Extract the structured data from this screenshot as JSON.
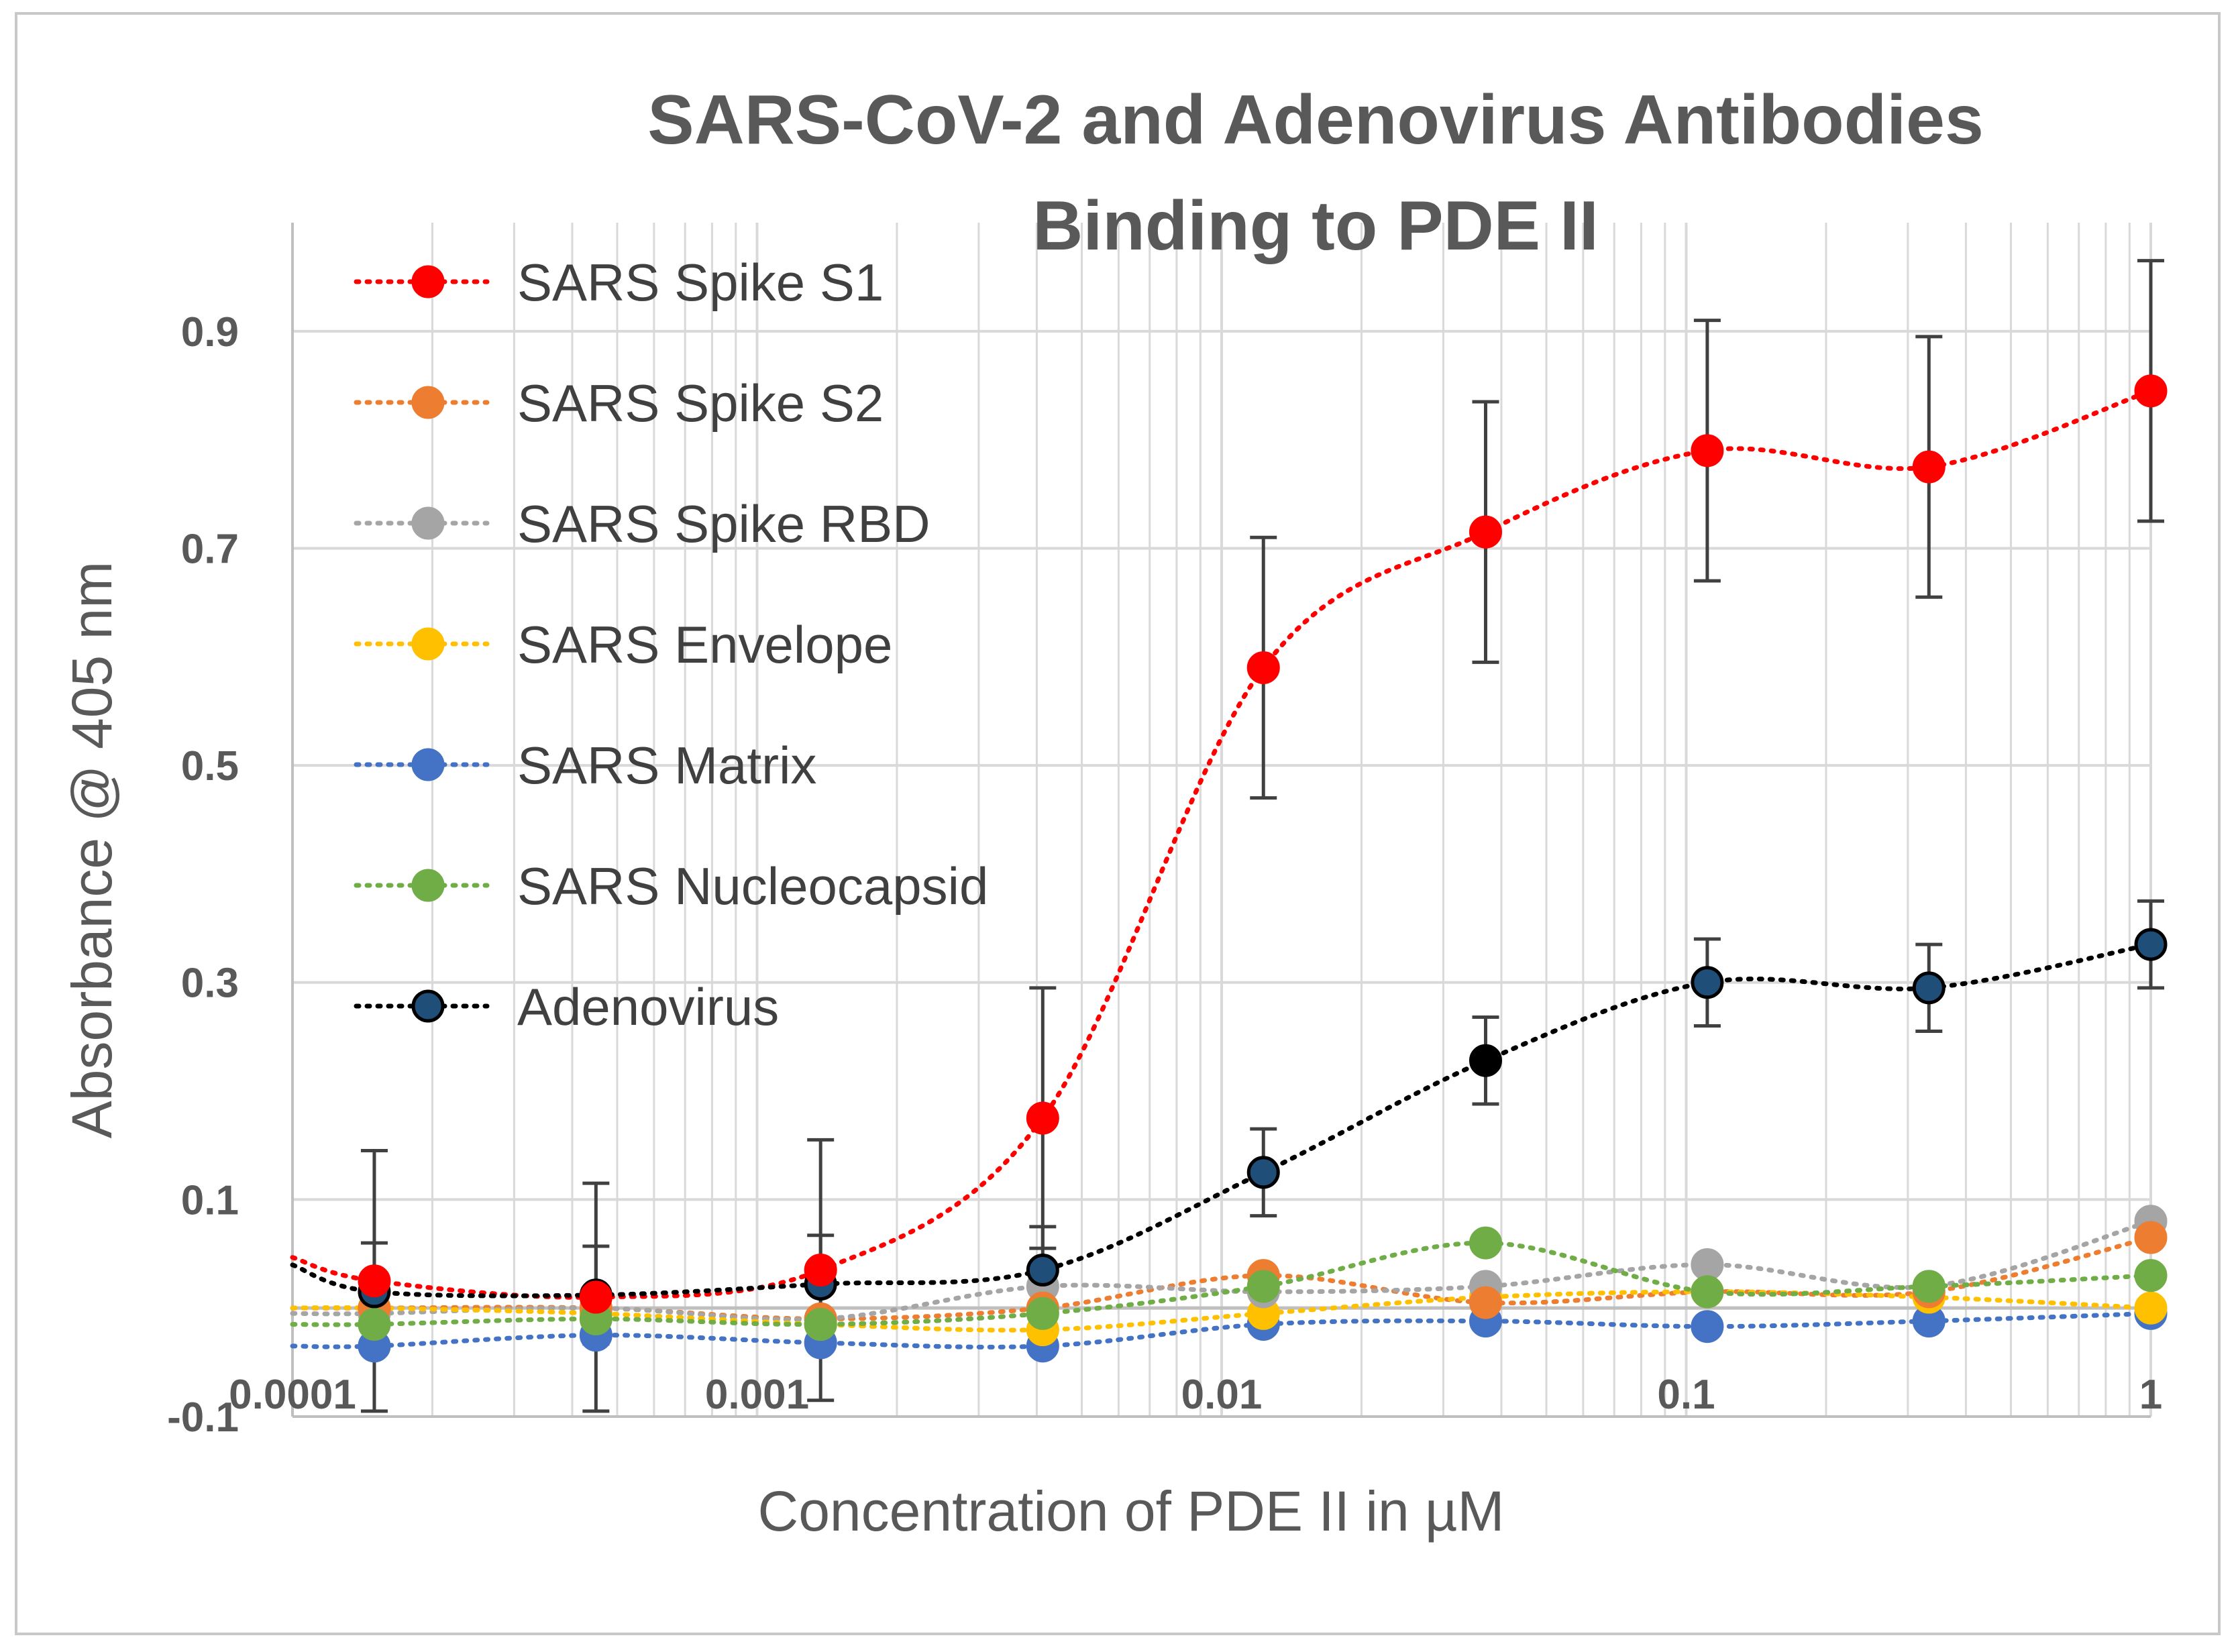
{
  "chart_data": {
    "type": "line",
    "title_lines": [
      "SARS-CoV-2 and Adenovirus Antibodies",
      "Binding to PDE II"
    ],
    "xlabel": "Concentration of PDE II in µM",
    "ylabel": "Absorbance @ 405 nm",
    "x_scale": "log",
    "xlim": [
      0.0001,
      1
    ],
    "ylim": [
      -0.1,
      1.0
    ],
    "x_ticks": [
      0.0001,
      0.001,
      0.01,
      0.1,
      1
    ],
    "x_tick_labels": [
      "0.0001",
      "0.001",
      "0.01",
      "0.1",
      "1"
    ],
    "y_ticks": [
      -0.1,
      0.1,
      0.3,
      0.5,
      0.7,
      0.9
    ],
    "y_tick_labels": [
      "-0.1",
      "0.1",
      "0.3",
      "0.5",
      "0.7",
      "0.9"
    ],
    "x": [
      0.00015,
      0.00045,
      0.00137,
      0.00412,
      0.0123,
      0.037,
      0.111,
      0.333,
      1.0
    ],
    "legend_position": "top-left",
    "series": [
      {
        "name": "SARS Spike S1",
        "color": "#ff0000",
        "marker_edge": "#ff0000",
        "values": [
          0.025,
          0.01,
          0.035,
          0.175,
          0.59,
          0.715,
          0.79,
          0.775,
          0.845
        ],
        "errors": [
          0.12,
          0.105,
          0.12,
          0.12,
          0.12,
          0.12,
          0.12,
          0.12,
          0.12
        ]
      },
      {
        "name": "SARS Spike S2",
        "color": "#ed7d31",
        "marker_edge": "#ed7d31",
        "values": [
          0.0,
          0.0,
          -0.01,
          0.0,
          0.03,
          0.005,
          0.015,
          0.015,
          0.065
        ]
      },
      {
        "name": "SARS Spike RBD",
        "color": "#a5a5a5",
        "marker_edge": "#a5a5a5",
        "values": [
          -0.005,
          0.0,
          -0.01,
          0.02,
          0.015,
          0.02,
          0.04,
          0.02,
          0.08
        ]
      },
      {
        "name": "SARS Envelope",
        "color": "#ffc000",
        "marker_edge": "#ffc000",
        "values": [
          0.0,
          -0.005,
          -0.015,
          -0.02,
          -0.005,
          0.01,
          0.015,
          0.01,
          0.0
        ]
      },
      {
        "name": "SARS Matrix",
        "color": "#4472c4",
        "marker_edge": "#4472c4",
        "values": [
          -0.035,
          -0.025,
          -0.032,
          -0.035,
          -0.015,
          -0.012,
          -0.017,
          -0.012,
          -0.005
        ]
      },
      {
        "name": "SARS Nucleocapsid",
        "color": "#70ad47",
        "marker_edge": "#70ad47",
        "values": [
          -0.015,
          -0.01,
          -0.015,
          -0.005,
          0.02,
          0.06,
          0.015,
          0.02,
          0.03
        ]
      },
      {
        "name": "Adenovirus",
        "color": "#000000",
        "marker_edge": "#000000",
        "marker_fill": "#1f4e79",
        "values": [
          0.015,
          0.012,
          0.022,
          0.035,
          0.125,
          0.228,
          0.3,
          0.295,
          0.335
        ],
        "errors": [
          0.045,
          0.045,
          0.045,
          0.04,
          0.04,
          0.04,
          0.04,
          0.04,
          0.04
        ]
      }
    ]
  }
}
